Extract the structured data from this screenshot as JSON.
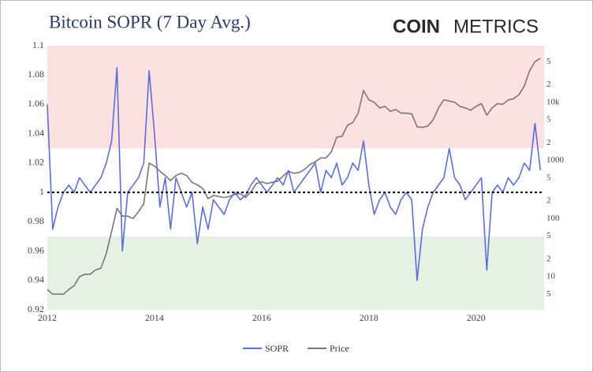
{
  "chart_data": {
    "type": "line",
    "title": "Bitcoin SOPR (7 Day Avg.)",
    "brand": {
      "bold": "COIN",
      "light": "METRICS"
    },
    "x": [
      2012.0,
      2012.1,
      2012.2,
      2012.3,
      2012.4,
      2012.5,
      2012.6,
      2012.7,
      2012.8,
      2012.9,
      2013.0,
      2013.1,
      2013.2,
      2013.3,
      2013.4,
      2013.5,
      2013.6,
      2013.7,
      2013.8,
      2013.9,
      2014.0,
      2014.1,
      2014.2,
      2014.3,
      2014.4,
      2014.5,
      2014.6,
      2014.7,
      2014.8,
      2014.9,
      2015.0,
      2015.1,
      2015.2,
      2015.3,
      2015.4,
      2015.5,
      2015.6,
      2015.7,
      2015.8,
      2015.9,
      2016.0,
      2016.1,
      2016.2,
      2016.3,
      2016.4,
      2016.5,
      2016.6,
      2016.7,
      2016.8,
      2016.9,
      2017.0,
      2017.1,
      2017.2,
      2017.3,
      2017.4,
      2017.5,
      2017.6,
      2017.7,
      2017.8,
      2017.9,
      2018.0,
      2018.1,
      2018.2,
      2018.3,
      2018.4,
      2018.5,
      2018.6,
      2018.7,
      2018.8,
      2018.9,
      2019.0,
      2019.1,
      2019.2,
      2019.3,
      2019.4,
      2019.5,
      2019.6,
      2019.7,
      2019.8,
      2019.9,
      2020.0,
      2020.1,
      2020.2,
      2020.3,
      2020.4,
      2020.5,
      2020.6,
      2020.7,
      2020.8,
      2020.9,
      2021.0,
      2021.1,
      2021.2
    ],
    "series": [
      {
        "name": "SOPR",
        "color": "#5b6fd8",
        "axis": "y",
        "values": [
          1.06,
          0.975,
          0.99,
          1.0,
          1.005,
          1.0,
          1.01,
          1.005,
          1.0,
          1.005,
          1.01,
          1.02,
          1.035,
          1.085,
          0.96,
          1.0,
          1.005,
          1.01,
          1.02,
          1.083,
          1.04,
          0.99,
          1.01,
          0.975,
          1.01,
          1.0,
          0.99,
          1.0,
          0.965,
          0.99,
          0.975,
          0.995,
          0.99,
          0.985,
          0.995,
          1.0,
          0.995,
          0.998,
          1.005,
          1.01,
          1.005,
          1.0,
          1.005,
          1.01,
          1.005,
          1.015,
          1.0,
          1.005,
          1.01,
          1.015,
          1.02,
          1.0,
          1.015,
          1.01,
          1.02,
          1.005,
          1.01,
          1.02,
          1.015,
          1.035,
          1.005,
          0.985,
          0.995,
          1.0,
          0.99,
          0.985,
          0.995,
          1.0,
          0.995,
          0.94,
          0.975,
          0.99,
          1.0,
          1.005,
          1.01,
          1.03,
          1.01,
          1.005,
          0.995,
          1.0,
          1.005,
          1.01,
          0.947,
          1.0,
          1.005,
          1.0,
          1.01,
          1.005,
          1.01,
          1.02,
          1.015,
          1.047,
          1.015
        ]
      },
      {
        "name": "Price",
        "color": "#7a7676",
        "axis": "y2",
        "values": [
          6,
          5,
          5,
          5,
          6,
          7,
          10,
          11,
          11,
          13,
          14,
          25,
          60,
          150,
          110,
          110,
          100,
          130,
          180,
          900,
          800,
          650,
          550,
          450,
          550,
          600,
          550,
          420,
          380,
          330,
          220,
          250,
          240,
          230,
          240,
          260,
          270,
          230,
          290,
          400,
          430,
          400,
          420,
          440,
          540,
          650,
          600,
          620,
          700,
          850,
          950,
          1100,
          1100,
          1400,
          2500,
          2600,
          4000,
          4500,
          6500,
          16000,
          11000,
          10000,
          8000,
          8500,
          7000,
          7500,
          6500,
          6500,
          6300,
          3800,
          3700,
          3900,
          5000,
          8000,
          11000,
          10500,
          10000,
          8500,
          8000,
          7300,
          8500,
          9500,
          6000,
          8000,
          9500,
          9200,
          11000,
          11500,
          13500,
          19000,
          35000,
          50000,
          57000
        ]
      }
    ],
    "xlim": [
      2012,
      2021.27
    ],
    "xticks": [
      2012,
      2014,
      2016,
      2018,
      2020
    ],
    "ylim": [
      0.92,
      1.1
    ],
    "yticks": [
      0.92,
      0.94,
      0.96,
      0.98,
      1,
      1.02,
      1.04,
      1.06,
      1.08,
      1.1
    ],
    "y2lim": [
      2.7,
      94000
    ],
    "y2scale": "log",
    "y2ticks": [
      {
        "value": 5,
        "label": "5"
      },
      10,
      {
        "value": 20,
        "label": "2"
      },
      {
        "value": 50,
        "label": "5"
      },
      100,
      {
        "value": 200,
        "label": "2"
      },
      {
        "value": 500,
        "label": "5"
      },
      1000,
      {
        "value": 2000,
        "label": "2"
      },
      {
        "value": 5000,
        "label": "5"
      },
      {
        "value": 10000,
        "label": "10k"
      },
      {
        "value": 20000,
        "label": "2"
      },
      {
        "value": 50000,
        "label": "5"
      }
    ],
    "upper_zone": {
      "min": 1.03,
      "color": "#fde1e1"
    },
    "lower_zone": {
      "max": 0.97,
      "color": "#e5f1e3"
    },
    "reference_line": 1,
    "grid": false,
    "legend": "bottom"
  }
}
